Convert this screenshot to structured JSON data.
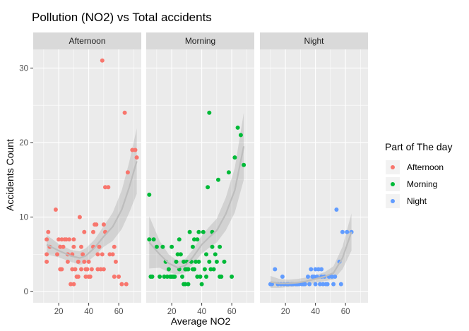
{
  "chart_data": {
    "type": "scatter",
    "title": "Pollution (NO2) vs Total accidents",
    "xlabel": "Average NO2",
    "ylabel": "Accidents Count",
    "xlim": [
      3,
      75
    ],
    "ylim": [
      -1.5,
      32.5
    ],
    "x_ticks": [
      20,
      40,
      60
    ],
    "y_ticks": [
      0,
      10,
      20,
      30
    ],
    "grid": true,
    "smooth": "loess with confidence band",
    "legend": {
      "title": "Part of The day",
      "position": "right",
      "entries": [
        {
          "label": "Afternoon",
          "color": "#F8766D"
        },
        {
          "label": "Morning",
          "color": "#00BA38"
        },
        {
          "label": "Night",
          "color": "#619CFF"
        }
      ]
    },
    "panels": [
      {
        "strip": "Afternoon",
        "color": "#F8766D",
        "points": [
          [
            12,
            4
          ],
          [
            12,
            5
          ],
          [
            12,
            7
          ],
          [
            13,
            8
          ],
          [
            14,
            6
          ],
          [
            18,
            11
          ],
          [
            19,
            5
          ],
          [
            20,
            7
          ],
          [
            21,
            3
          ],
          [
            21,
            6
          ],
          [
            22,
            3
          ],
          [
            22,
            7
          ],
          [
            23,
            6
          ],
          [
            24,
            7
          ],
          [
            25,
            7
          ],
          [
            26,
            4
          ],
          [
            26,
            5
          ],
          [
            27,
            7
          ],
          [
            28,
            1
          ],
          [
            29,
            3
          ],
          [
            29,
            5
          ],
          [
            30,
            1
          ],
          [
            30,
            6
          ],
          [
            30,
            7
          ],
          [
            31,
            3
          ],
          [
            32,
            2
          ],
          [
            33,
            2
          ],
          [
            33,
            4
          ],
          [
            34,
            10
          ],
          [
            35,
            3
          ],
          [
            35,
            6
          ],
          [
            36,
            5
          ],
          [
            37,
            4
          ],
          [
            37,
            8
          ],
          [
            38,
            2
          ],
          [
            38,
            3
          ],
          [
            39,
            3
          ],
          [
            40,
            2
          ],
          [
            40,
            4
          ],
          [
            41,
            2
          ],
          [
            42,
            3
          ],
          [
            43,
            6
          ],
          [
            43,
            8
          ],
          [
            44,
            9
          ],
          [
            45,
            9
          ],
          [
            46,
            3
          ],
          [
            46,
            5
          ],
          [
            47,
            6
          ],
          [
            48,
            3
          ],
          [
            49,
            31
          ],
          [
            49,
            5
          ],
          [
            50,
            3
          ],
          [
            50,
            9
          ],
          [
            51,
            14
          ],
          [
            51,
            8
          ],
          [
            53,
            14
          ],
          [
            54,
            5
          ],
          [
            56,
            5
          ],
          [
            57,
            6
          ],
          [
            57,
            2
          ],
          [
            58,
            4
          ],
          [
            60,
            2
          ],
          [
            62,
            1
          ],
          [
            64,
            24
          ],
          [
            65,
            1
          ],
          [
            66,
            16
          ],
          [
            69,
            19
          ],
          [
            71,
            19
          ],
          [
            72,
            18
          ]
        ],
        "fit": [
          [
            12,
            6.3
          ],
          [
            20,
            5.5
          ],
          [
            28,
            4.8
          ],
          [
            34,
            4.5
          ],
          [
            38,
            4.8
          ],
          [
            44,
            5.9
          ],
          [
            50,
            7.4
          ],
          [
            56,
            8.7
          ],
          [
            62,
            11
          ],
          [
            67,
            14
          ],
          [
            72,
            17.5
          ]
        ],
        "band_half_width": [
          1.3,
          0.9,
          0.8,
          0.9,
          1.0,
          1.1,
          1.4,
          1.9,
          2.6,
          3.4,
          4.4
        ]
      },
      {
        "strip": "Morning",
        "color": "#00BA38",
        "points": [
          [
            5,
            13
          ],
          [
            5,
            7
          ],
          [
            6,
            2
          ],
          [
            7,
            2
          ],
          [
            8,
            7
          ],
          [
            10,
            6
          ],
          [
            12,
            2
          ],
          [
            14,
            6
          ],
          [
            15,
            2
          ],
          [
            16,
            4
          ],
          [
            17,
            2
          ],
          [
            18,
            3
          ],
          [
            19,
            2
          ],
          [
            20,
            6
          ],
          [
            20,
            2
          ],
          [
            21,
            2
          ],
          [
            22,
            2
          ],
          [
            23,
            4
          ],
          [
            24,
            5
          ],
          [
            25,
            3
          ],
          [
            25,
            7
          ],
          [
            26,
            5
          ],
          [
            27,
            2
          ],
          [
            28,
            4
          ],
          [
            28,
            1
          ],
          [
            29,
            3
          ],
          [
            29,
            1
          ],
          [
            30,
            3
          ],
          [
            30,
            4
          ],
          [
            31,
            3
          ],
          [
            31,
            1
          ],
          [
            32,
            8
          ],
          [
            33,
            4
          ],
          [
            34,
            3
          ],
          [
            34,
            6
          ],
          [
            35,
            7
          ],
          [
            35,
            3
          ],
          [
            36,
            4
          ],
          [
            37,
            7
          ],
          [
            37,
            2
          ],
          [
            38,
            8
          ],
          [
            38,
            4
          ],
          [
            39,
            2
          ],
          [
            40,
            1
          ],
          [
            41,
            8
          ],
          [
            42,
            3
          ],
          [
            43,
            5
          ],
          [
            43,
            2
          ],
          [
            44,
            14
          ],
          [
            45,
            24
          ],
          [
            45,
            4
          ],
          [
            46,
            3
          ],
          [
            47,
            8
          ],
          [
            47,
            6
          ],
          [
            48,
            3
          ],
          [
            49,
            5
          ],
          [
            50,
            4
          ],
          [
            51,
            15
          ],
          [
            52,
            6
          ],
          [
            52,
            2
          ],
          [
            53,
            2
          ],
          [
            55,
            4
          ],
          [
            58,
            16
          ],
          [
            60,
            2
          ],
          [
            62,
            18
          ],
          [
            64,
            22
          ],
          [
            66,
            21
          ],
          [
            68,
            17
          ]
        ],
        "fit": [
          [
            5,
            6.6
          ],
          [
            12,
            5.0
          ],
          [
            18,
            3.8
          ],
          [
            24,
            3.2
          ],
          [
            29,
            3.5
          ],
          [
            34,
            4.6
          ],
          [
            40,
            6.3
          ],
          [
            45,
            7.3
          ],
          [
            50,
            8.2
          ],
          [
            56,
            10.4
          ],
          [
            62,
            13.6
          ],
          [
            68,
            19.5
          ]
        ],
        "band_half_width": [
          3.5,
          1.8,
          1.2,
          0.9,
          0.9,
          1.0,
          1.2,
          1.4,
          1.6,
          2.2,
          3.0,
          4.5
        ]
      },
      {
        "strip": "Night",
        "color": "#619CFF",
        "points": [
          [
            10,
            1
          ],
          [
            11,
            1
          ],
          [
            13,
            3
          ],
          [
            15,
            1
          ],
          [
            17,
            1
          ],
          [
            18,
            2
          ],
          [
            19,
            1
          ],
          [
            21,
            1
          ],
          [
            22,
            1
          ],
          [
            24,
            1
          ],
          [
            25,
            1
          ],
          [
            27,
            1
          ],
          [
            28,
            1
          ],
          [
            29,
            1
          ],
          [
            31,
            1
          ],
          [
            32,
            1
          ],
          [
            33,
            1
          ],
          [
            35,
            2
          ],
          [
            36,
            1
          ],
          [
            37,
            3
          ],
          [
            38,
            2
          ],
          [
            39,
            2
          ],
          [
            40,
            3
          ],
          [
            40,
            1
          ],
          [
            41,
            2
          ],
          [
            42,
            3
          ],
          [
            43,
            1
          ],
          [
            44,
            2
          ],
          [
            44,
            3
          ],
          [
            45,
            1
          ],
          [
            46,
            2
          ],
          [
            47,
            1
          ],
          [
            48,
            1
          ],
          [
            49,
            2
          ],
          [
            51,
            2
          ],
          [
            52,
            1
          ],
          [
            53,
            2
          ],
          [
            54,
            11
          ],
          [
            56,
            4
          ],
          [
            57,
            1
          ],
          [
            58,
            8
          ],
          [
            61,
            8
          ],
          [
            64,
            8
          ]
        ],
        "fit": [
          [
            10,
            1.3
          ],
          [
            16,
            1.1
          ],
          [
            22,
            1.1
          ],
          [
            28,
            1.2
          ],
          [
            34,
            1.4
          ],
          [
            40,
            1.7
          ],
          [
            46,
            2.0
          ],
          [
            52,
            2.5
          ],
          [
            58,
            4.5
          ],
          [
            64,
            8.0
          ]
        ],
        "band_half_width": [
          0.8,
          0.6,
          0.5,
          0.5,
          0.5,
          0.5,
          0.6,
          0.9,
          1.5,
          2.5
        ]
      }
    ]
  }
}
